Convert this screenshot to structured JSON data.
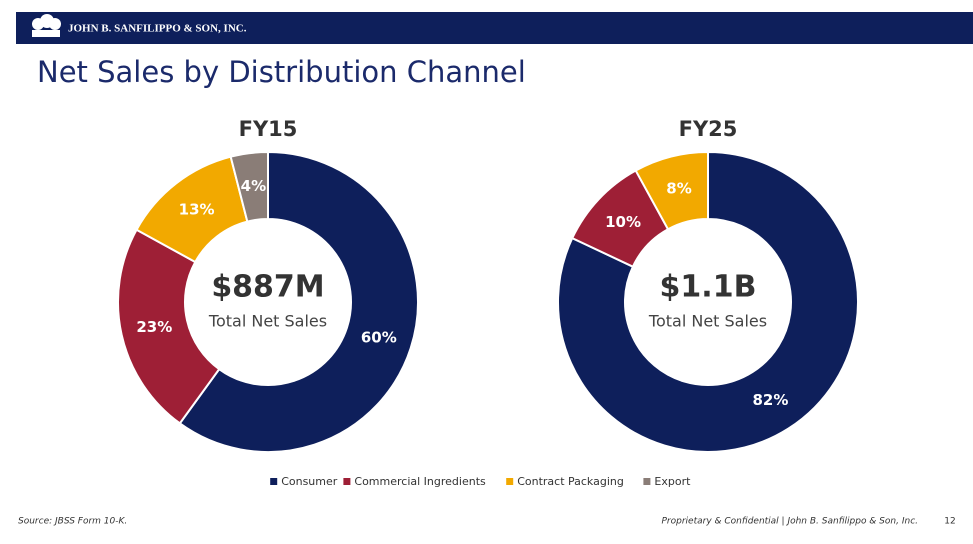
{
  "header": {
    "company": "JOHN B. SANFILIPPO & SON, INC."
  },
  "title": "Net Sales by Distribution Channel",
  "chart_data": [
    {
      "type": "donut",
      "title": "FY15",
      "center_label": "$887M",
      "center_sublabel": "Total Net Sales",
      "categories": [
        "Consumer",
        "Commercial Ingredients",
        "Contract Packaging",
        "Export"
      ],
      "values": [
        60,
        23,
        13,
        4
      ],
      "value_labels": [
        "60%",
        "23%",
        "13%",
        "4%"
      ],
      "colors": [
        "#0e1f5b",
        "#9e1f36",
        "#f2a900",
        "#8a7d77"
      ]
    },
    {
      "type": "donut",
      "title": "FY25",
      "center_label": "$1.1B",
      "center_sublabel": "Total Net Sales",
      "categories": [
        "Consumer",
        "Commercial Ingredients",
        "Contract Packaging"
      ],
      "values": [
        82,
        10,
        8
      ],
      "value_labels": [
        "82%",
        "10%",
        "8%"
      ],
      "colors": [
        "#0e1f5b",
        "#9e1f36",
        "#f2a900"
      ]
    }
  ],
  "footer": {
    "source": "Source: JBSS Form 10-K.",
    "confidential": "Proprietary & Confidential | John B. Sanfilippo & Son, Inc.",
    "page": "12"
  }
}
